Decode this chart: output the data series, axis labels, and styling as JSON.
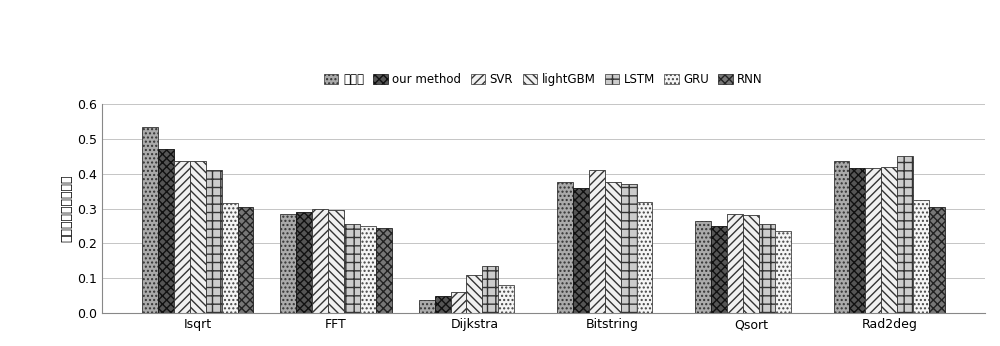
{
  "categories": [
    "Isqrt",
    "FFT",
    "Dijkstra",
    "Bitstring",
    "Qsort",
    "Rad2deg"
  ],
  "series": [
    {
      "label": "标准值",
      "values": [
        0.535,
        0.285,
        0.038,
        0.375,
        0.265,
        0.435
      ]
    },
    {
      "label": "our method",
      "values": [
        0.47,
        0.29,
        0.05,
        0.36,
        0.25,
        0.415
      ]
    },
    {
      "label": "SVR",
      "values": [
        0.435,
        0.3,
        0.06,
        0.41,
        0.285,
        0.415
      ]
    },
    {
      "label": "lightGBM",
      "values": [
        0.435,
        0.295,
        0.11,
        0.375,
        0.28,
        0.42
      ]
    },
    {
      "label": "LSTM",
      "values": [
        0.41,
        0.255,
        0.135,
        0.37,
        0.255,
        0.45
      ]
    },
    {
      "label": "GRU",
      "values": [
        0.315,
        0.25,
        0.08,
        0.32,
        0.235,
        0.325
      ]
    },
    {
      "label": "RNN",
      "values": [
        0.305,
        0.245,
        0.0,
        0.0,
        0.0,
        0.305
      ]
    }
  ],
  "ylabel": "脆弱性预测结果对比",
  "ylim": [
    0,
    0.6
  ],
  "yticks": [
    0,
    0.1,
    0.2,
    0.3,
    0.4,
    0.5,
    0.6
  ],
  "legend_fontsize": 8.5,
  "axis_fontsize": 9,
  "bar_width": 0.115,
  "background_color": "#ffffff",
  "grid_color": "#bbbbbb",
  "hatch_styles": [
    "....",
    "xxxx",
    "////",
    "\\\\\\\\\\\\\\\\",
    "ZZ",
    "----",
    "++++"
  ],
  "face_colors": [
    "#aaaaaa",
    "#555555",
    "#cccccc",
    "#888888",
    "#bbbbbb",
    "#dddddd",
    "#999999"
  ],
  "edge_colors": [
    "#333333",
    "#111111",
    "#333333",
    "#222222",
    "#333333",
    "#333333",
    "#333333"
  ]
}
